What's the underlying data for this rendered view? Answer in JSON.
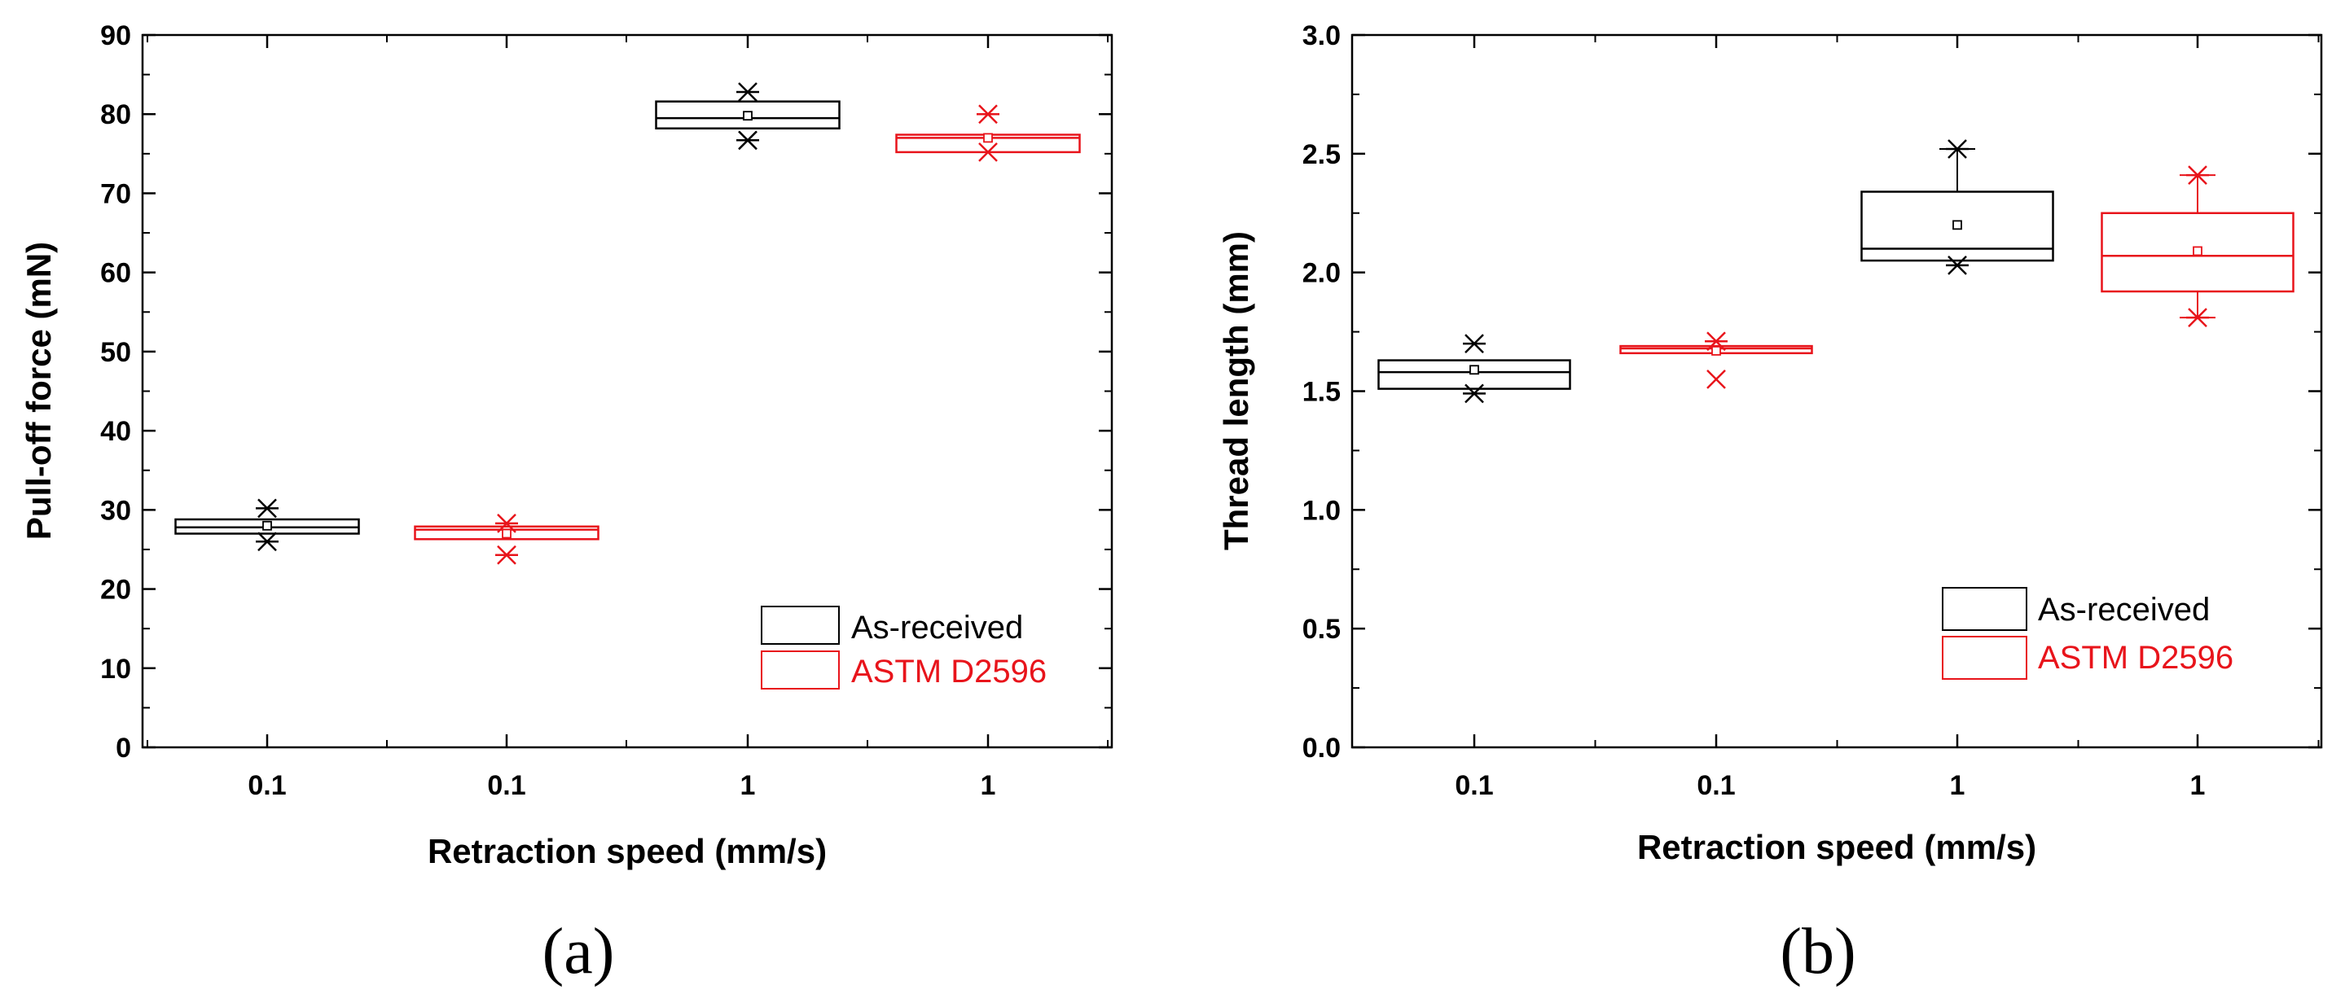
{
  "chart_data": [
    {
      "type": "box",
      "panel": "(a)",
      "xlabel": "Retraction speed (mm/s)",
      "ylabel": "Pull-off force (mN)",
      "ylim": [
        0,
        90
      ],
      "y_major_ticks": [
        0,
        10,
        20,
        30,
        40,
        50,
        60,
        70,
        80,
        90
      ],
      "y_tick_labels": [
        "0",
        "10",
        "20",
        "30",
        "40",
        "50",
        "60",
        "70",
        "80",
        "90"
      ],
      "categories": [
        "0.1",
        "0.1",
        "1",
        "1"
      ],
      "legend": [
        "As-received",
        "ASTM D2596"
      ],
      "legend_position": "lower-right",
      "series_colors": {
        "As-received": "#000000",
        "ASTM D2596": "#e8141b"
      },
      "boxes": [
        {
          "category_index": 0,
          "series": "As-received",
          "q1": 27.0,
          "median": 27.8,
          "q3": 28.8,
          "mean": 28.0,
          "whisker_low": 27.0,
          "whisker_high": 28.8,
          "max": 30.2,
          "min": 26.0,
          "max_marker": "asterisk",
          "min_marker": "asterisk"
        },
        {
          "category_index": 1,
          "series": "ASTM D2596",
          "q1": 26.3,
          "median": 27.5,
          "q3": 27.9,
          "mean": 27.0,
          "whisker_low": 26.3,
          "whisker_high": 27.9,
          "max": 28.3,
          "min": 24.3,
          "max_marker": "asterisk",
          "min_marker": "asterisk"
        },
        {
          "category_index": 2,
          "series": "As-received",
          "q1": 78.2,
          "median": 79.5,
          "q3": 81.6,
          "mean": 79.8,
          "whisker_low": 78.2,
          "whisker_high": 81.6,
          "max": 82.8,
          "min": 76.7,
          "max_marker": "asterisk",
          "min_marker": "asterisk"
        },
        {
          "category_index": 3,
          "series": "ASTM D2596",
          "q1": 75.2,
          "median": 77.0,
          "q3": 77.4,
          "mean": 77.0,
          "whisker_low": 75.2,
          "whisker_high": 77.4,
          "max": 80.0,
          "min": 75.2,
          "max_marker": "asterisk",
          "min_marker": "x"
        }
      ]
    },
    {
      "type": "box",
      "panel": "(b)",
      "xlabel": "Retraction speed (mm/s)",
      "ylabel": "Thread length (mm)",
      "ylim": [
        0,
        3.0
      ],
      "y_major_ticks": [
        0,
        0.5,
        1.0,
        1.5,
        2.0,
        2.5,
        3.0
      ],
      "y_tick_labels": [
        "0.0",
        "0.5",
        "1.0",
        "1.5",
        "2.0",
        "2.5",
        "3.0"
      ],
      "categories": [
        "0.1",
        "0.1",
        "1",
        "1"
      ],
      "legend": [
        "As-received",
        "ASTM D2596"
      ],
      "legend_position": "lower-right",
      "series_colors": {
        "As-received": "#000000",
        "ASTM D2596": "#e8141b"
      },
      "boxes": [
        {
          "category_index": 0,
          "series": "As-received",
          "q1": 1.51,
          "median": 1.58,
          "q3": 1.63,
          "mean": 1.59,
          "whisker_low": 1.51,
          "whisker_high": 1.63,
          "max": 1.7,
          "min": 1.49,
          "max_marker": "asterisk",
          "min_marker": "asterisk"
        },
        {
          "category_index": 1,
          "series": "ASTM D2596",
          "q1": 1.66,
          "median": 1.68,
          "q3": 1.69,
          "mean": 1.67,
          "whisker_low": 1.66,
          "whisker_high": 1.69,
          "max": 1.71,
          "min": 1.55,
          "max_marker": "asterisk",
          "min_marker": "x"
        },
        {
          "category_index": 2,
          "series": "As-received",
          "q1": 2.05,
          "median": 2.1,
          "q3": 2.34,
          "mean": 2.2,
          "whisker_low": 2.05,
          "whisker_high": 2.52,
          "max": 2.52,
          "min": 2.03,
          "max_marker": "asterisk",
          "min_marker": "asterisk"
        },
        {
          "category_index": 3,
          "series": "ASTM D2596",
          "q1": 1.92,
          "median": 2.07,
          "q3": 2.25,
          "mean": 2.09,
          "whisker_low": 1.81,
          "whisker_high": 2.41,
          "max": 2.41,
          "min": 1.81,
          "max_marker": "asterisk",
          "min_marker": "asterisk"
        }
      ]
    }
  ]
}
